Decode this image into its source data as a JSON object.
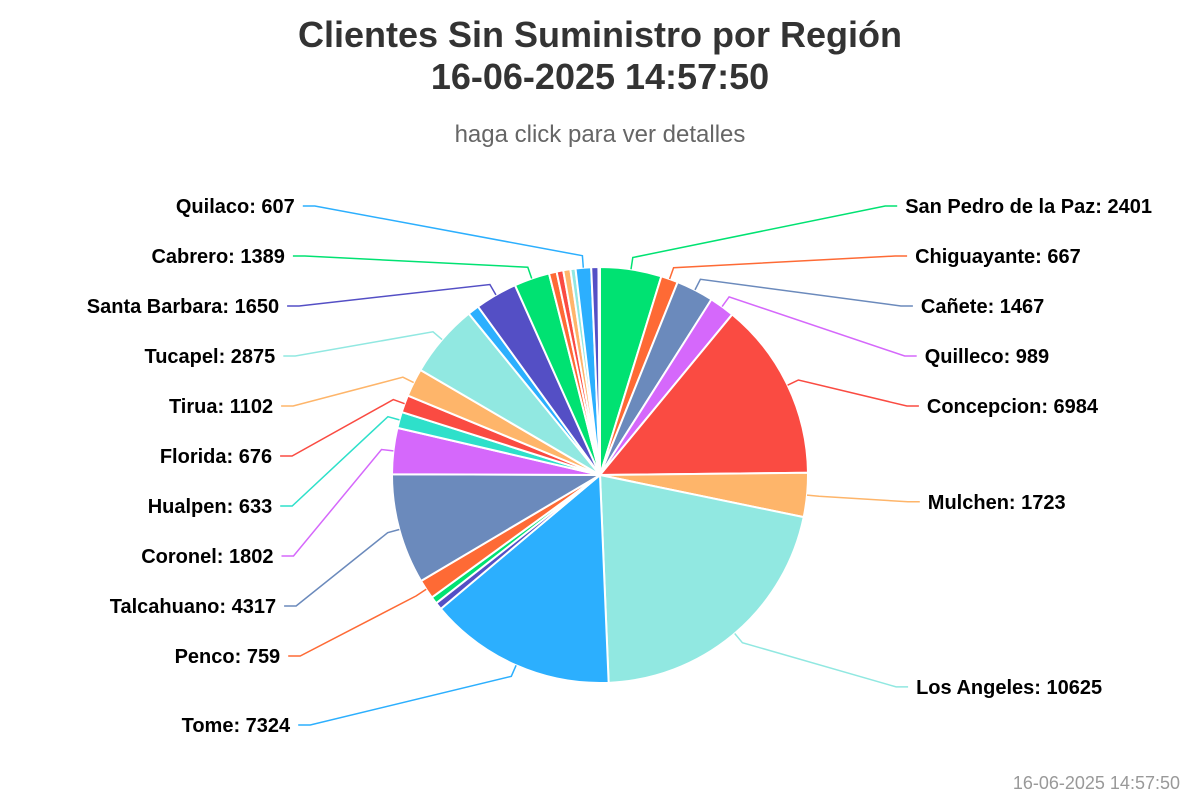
{
  "header": {
    "title_line1": "Clientes Sin Suministro por Región",
    "title_line2": "16-06-2025 14:57:50",
    "subtitle": "haga click para ver detalles"
  },
  "footer": {
    "timestamp": "16-06-2025 14:57:50"
  },
  "chart_data": {
    "type": "pie",
    "title": "Clientes Sin Suministro por Región 16-06-2025 14:57:50",
    "subtitle": "haga click para ver detalles",
    "slices": [
      {
        "name": "San Pedro de la Paz",
        "value": 2401,
        "color": "#00e272",
        "label": "San Pedro de la Paz: 2401"
      },
      {
        "name": "Chiguayante",
        "value": 667,
        "color": "#fe6a35",
        "label": "Chiguayante: 667"
      },
      {
        "name": "Cañete",
        "value": 1467,
        "color": "#6b8abc",
        "label": "Cañete: 1467"
      },
      {
        "name": "Quilleco",
        "value": 989,
        "color": "#d568fb",
        "label": "Quilleco: 989"
      },
      {
        "name": "Concepcion",
        "value": 6984,
        "color": "#fa4b42",
        "label": "Concepcion: 6984"
      },
      {
        "name": "Mulchen",
        "value": 1723,
        "color": "#feb56a",
        "label": "Mulchen: 1723"
      },
      {
        "name": "Los Angeles",
        "value": 10625,
        "color": "#91e8e1",
        "label": "Los Angeles: 10625"
      },
      {
        "name": "Tome",
        "value": 7324,
        "color": "#2caffe",
        "label": "Tome: 7324"
      },
      {
        "name": "",
        "value": 280,
        "color": "#544fc5",
        "label": ""
      },
      {
        "name": "",
        "value": 280,
        "color": "#00e272",
        "label": ""
      },
      {
        "name": "Penco",
        "value": 759,
        "color": "#fe6a35",
        "label": "Penco: 759"
      },
      {
        "name": "Talcahuano",
        "value": 4317,
        "color": "#6b8abc",
        "label": "Talcahuano: 4317"
      },
      {
        "name": "Coronel",
        "value": 1802,
        "color": "#d568fb",
        "label": "Coronel: 1802"
      },
      {
        "name": "Hualpen",
        "value": 633,
        "color": "#2ee0ca",
        "label": "Hualpen: 633"
      },
      {
        "name": "Florida",
        "value": 676,
        "color": "#fa4b42",
        "label": "Florida: 676"
      },
      {
        "name": "Tirua",
        "value": 1102,
        "color": "#feb56a",
        "label": "Tirua: 1102"
      },
      {
        "name": "Tucapel",
        "value": 2875,
        "color": "#91e8e1",
        "label": "Tucapel: 2875"
      },
      {
        "name": "",
        "value": 450,
        "color": "#2caffe",
        "label": ""
      },
      {
        "name": "Santa Barbara",
        "value": 1650,
        "color": "#544fc5",
        "label": "Santa Barbara: 1650"
      },
      {
        "name": "Cabrero",
        "value": 1389,
        "color": "#00e272",
        "label": "Cabrero: 1389"
      },
      {
        "name": "",
        "value": 300,
        "color": "#fe6a35",
        "label": ""
      },
      {
        "name": "",
        "value": 260,
        "color": "#fa4b42",
        "label": ""
      },
      {
        "name": "",
        "value": 280,
        "color": "#feb56a",
        "label": ""
      },
      {
        "name": "",
        "value": 200,
        "color": "#91e8e1",
        "label": ""
      },
      {
        "name": "Quilaco",
        "value": 607,
        "color": "#2caffe",
        "label": "Quilaco: 607"
      },
      {
        "name": "",
        "value": 280,
        "color": "#544fc5",
        "label": ""
      },
      {
        "name": "",
        "value": 60,
        "color": "#00e272",
        "label": ""
      }
    ]
  }
}
